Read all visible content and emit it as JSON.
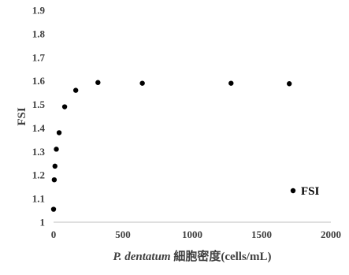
{
  "chart_data": {
    "type": "scatter",
    "title": "",
    "xlabel_italic": "P. dentatum",
    "xlabel_rest": " 細胞密度(cells/mL)",
    "ylabel": "FSI",
    "xlim": [
      0,
      2000
    ],
    "ylim": [
      1,
      1.9
    ],
    "xticks": [
      "0",
      "500",
      "1000",
      "1500",
      "2000"
    ],
    "yticks": [
      "1",
      "1.1",
      "1.2",
      "1.3",
      "1.4",
      "1.5",
      "1.6",
      "1.7",
      "1.8",
      "1.9"
    ],
    "grid": false,
    "legend_position": "bottom-right",
    "series": [
      {
        "name": "FSI",
        "color": "#000000",
        "points": [
          {
            "x": 0,
            "y": 1.055
          },
          {
            "x": 5,
            "y": 1.18
          },
          {
            "x": 10,
            "y": 1.238
          },
          {
            "x": 20,
            "y": 1.31
          },
          {
            "x": 40,
            "y": 1.38
          },
          {
            "x": 80,
            "y": 1.49
          },
          {
            "x": 160,
            "y": 1.56
          },
          {
            "x": 320,
            "y": 1.593
          },
          {
            "x": 640,
            "y": 1.59
          },
          {
            "x": 1280,
            "y": 1.59
          },
          {
            "x": 1700,
            "y": 1.588
          }
        ]
      }
    ]
  }
}
